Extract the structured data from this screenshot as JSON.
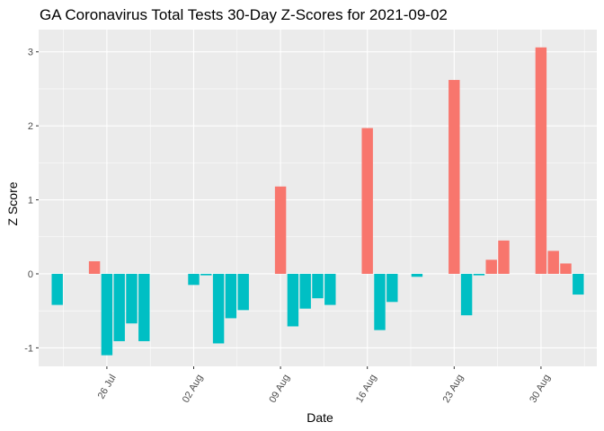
{
  "chart_data": {
    "type": "bar",
    "title": "GA Coronavirus Total Tests 30-Day Z-Scores for 2021-09-02",
    "xlabel": "Date",
    "ylabel": "Z Score",
    "ylim": [
      -1.25,
      3.3
    ],
    "y_ticks": [
      -1,
      0,
      1,
      2,
      3
    ],
    "x_ticks": [
      {
        "date": "2021-07-26",
        "label": "26 Jul"
      },
      {
        "date": "2021-08-02",
        "label": "02 Aug"
      },
      {
        "date": "2021-08-09",
        "label": "09 Aug"
      },
      {
        "date": "2021-08-16",
        "label": "16 Aug"
      },
      {
        "date": "2021-08-23",
        "label": "23 Aug"
      },
      {
        "date": "2021-08-30",
        "label": "30 Aug"
      }
    ],
    "grid": true,
    "legend": "none",
    "colors": {
      "positive": "#F8766D",
      "negative": "#00BFC4",
      "panel": "#EBEBEB",
      "grid": "#FFFFFF"
    },
    "x": [
      "2021-07-22",
      "2021-07-23",
      "2021-07-24",
      "2021-07-25",
      "2021-07-26",
      "2021-07-27",
      "2021-07-28",
      "2021-07-29",
      "2021-07-30",
      "2021-07-31",
      "2021-08-01",
      "2021-08-02",
      "2021-08-03",
      "2021-08-04",
      "2021-08-05",
      "2021-08-06",
      "2021-08-07",
      "2021-08-08",
      "2021-08-09",
      "2021-08-10",
      "2021-08-11",
      "2021-08-12",
      "2021-08-13",
      "2021-08-14",
      "2021-08-15",
      "2021-08-16",
      "2021-08-17",
      "2021-08-18",
      "2021-08-19",
      "2021-08-20",
      "2021-08-21",
      "2021-08-22",
      "2021-08-23",
      "2021-08-24",
      "2021-08-25",
      "2021-08-26",
      "2021-08-27",
      "2021-08-28",
      "2021-08-29",
      "2021-08-30",
      "2021-08-31",
      "2021-09-01",
      "2021-09-02"
    ],
    "values": [
      -0.42,
      null,
      null,
      0.17,
      -1.1,
      -0.91,
      -0.67,
      -0.91,
      null,
      null,
      null,
      -0.15,
      -0.02,
      -0.94,
      -0.6,
      -0.49,
      null,
      null,
      1.18,
      -0.71,
      -0.47,
      -0.33,
      -0.42,
      null,
      null,
      1.97,
      -0.76,
      -0.38,
      null,
      -0.04,
      null,
      null,
      2.62,
      -0.56,
      -0.02,
      0.19,
      0.45,
      null,
      null,
      3.06,
      0.31,
      0.14,
      -0.28
    ]
  }
}
